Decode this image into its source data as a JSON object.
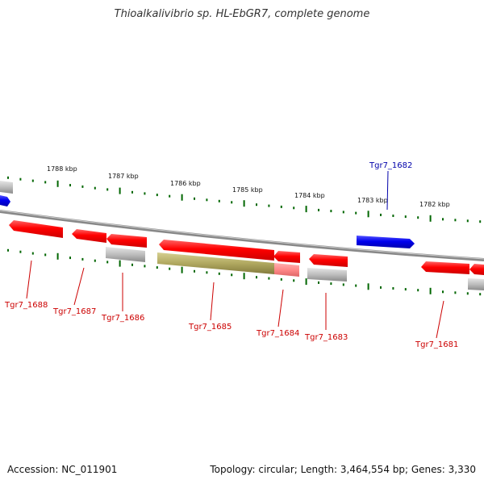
{
  "title": "Thioalkalivibrio sp. HL-EbGR7, complete genome",
  "footer": {
    "accession": "Accession: NC_011901",
    "info": "Topology: circular; Length: 3,464,554 bp; Genes: 3,330"
  },
  "colors": {
    "forward_gene": "#0000ee",
    "reverse_gene": "#ff0000",
    "label_red": "#cc0000",
    "label_blue": "#0000aa",
    "backbone": "#808080",
    "tick": "#006600",
    "grey_feature": "#bbbbbb",
    "olive_feature": "#b0a860",
    "pink_feature": "#ff8888"
  },
  "kbp_markers": [
    "1788 kbp",
    "1787 kbp",
    "1786 kbp",
    "1785 kbp",
    "1784 kbp",
    "1783 kbp",
    "1782 kbp"
  ],
  "gene_labels": [
    {
      "name": "Tgr7_1682",
      "strand": "forward"
    },
    {
      "name": "Tgr7_1681",
      "strand": "reverse"
    },
    {
      "name": "Tgr7_1683",
      "strand": "reverse"
    },
    {
      "name": "Tgr7_1684",
      "strand": "reverse"
    },
    {
      "name": "Tgr7_1685",
      "strand": "reverse"
    },
    {
      "name": "Tgr7_1686",
      "strand": "reverse"
    },
    {
      "name": "Tgr7_1687",
      "strand": "reverse"
    },
    {
      "name": "Tgr7_1688",
      "strand": "reverse"
    }
  ]
}
